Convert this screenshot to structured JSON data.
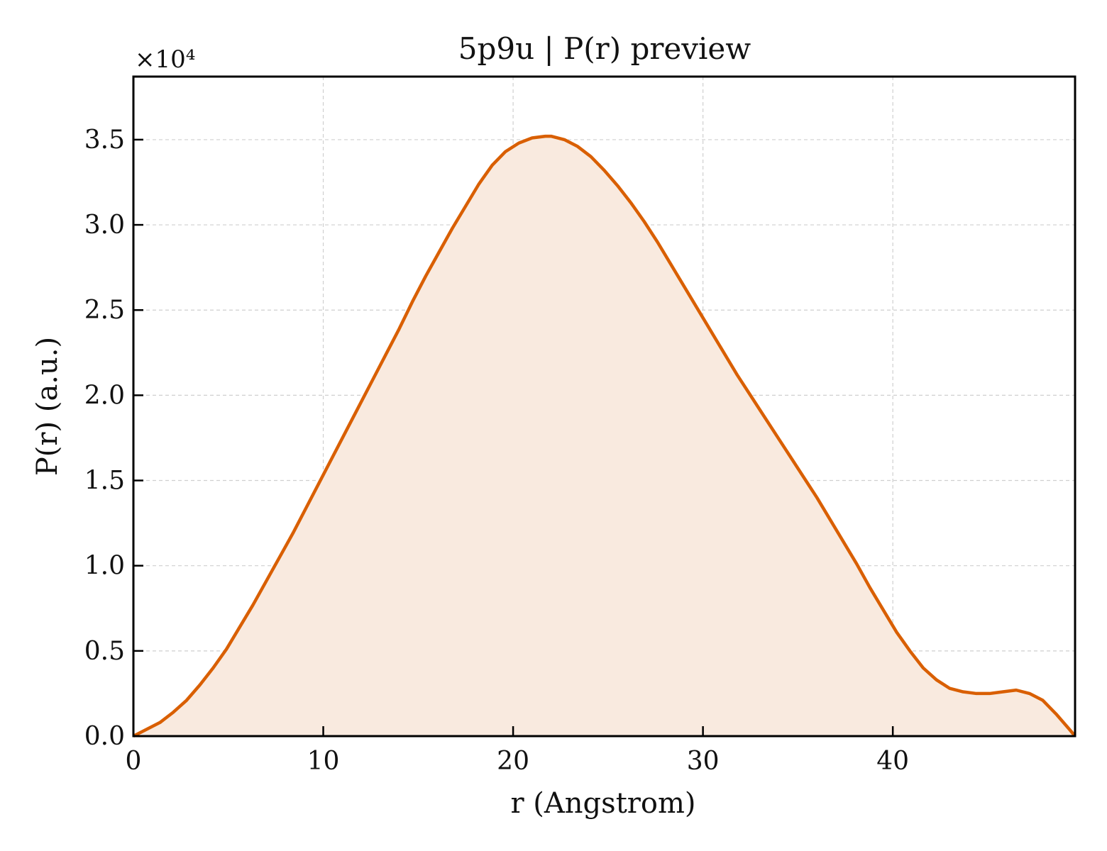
{
  "chart_data": {
    "type": "area",
    "title": "5p9u | P(r) preview",
    "xlabel": "r (Angstrom)",
    "ylabel": "P(r) (a.u.)",
    "y_multiplier_label": "×10⁴",
    "xlim": [
      0,
      49.6
    ],
    "ylim": [
      0,
      3.87
    ],
    "y_units": "×10⁴",
    "x_ticks": [
      0,
      10,
      20,
      30,
      40
    ],
    "x_tick_labels": [
      "0",
      "10",
      "20",
      "30",
      "40"
    ],
    "y_ticks": [
      0,
      0.5,
      1.0,
      1.5,
      2.0,
      2.5,
      3.0,
      3.5
    ],
    "y_tick_labels": [
      "0.0",
      "0.5",
      "1.0",
      "1.5",
      "2.0",
      "2.5",
      "3.0",
      "3.5"
    ],
    "grid": true,
    "line_color": "#d95f02",
    "fill_color": "#f9eadf",
    "series": [
      {
        "x": [
          0,
          0.7,
          1.4,
          2.1,
          2.8,
          3.5,
          4.2,
          4.9,
          5.6,
          6.3,
          7.0,
          7.7,
          8.4,
          9.1,
          9.8,
          10.5,
          11.2,
          11.9,
          12.6,
          13.3,
          14.0,
          14.7,
          15.4,
          16.1,
          16.8,
          17.5,
          18.2,
          18.9,
          19.6,
          20.3,
          21.0,
          21.7,
          22.0,
          22.7,
          23.4,
          24.1,
          24.8,
          25.5,
          26.2,
          26.9,
          27.6,
          28.3,
          29.0,
          29.7,
          30.4,
          31.1,
          31.8,
          32.5,
          33.2,
          33.9,
          34.6,
          35.3,
          36.0,
          36.7,
          37.4,
          38.1,
          38.8,
          39.5,
          40.2,
          40.9,
          41.6,
          42.3,
          43.0,
          43.7,
          44.4,
          45.1,
          45.8,
          46.5,
          47.2,
          47.9,
          48.6,
          49.3,
          49.6
        ],
        "values": [
          0.0,
          0.04,
          0.08,
          0.14,
          0.21,
          0.3,
          0.4,
          0.51,
          0.64,
          0.77,
          0.91,
          1.05,
          1.19,
          1.34,
          1.49,
          1.64,
          1.79,
          1.94,
          2.09,
          2.24,
          2.39,
          2.55,
          2.7,
          2.84,
          2.98,
          3.11,
          3.24,
          3.35,
          3.43,
          3.48,
          3.51,
          3.52,
          3.52,
          3.5,
          3.46,
          3.4,
          3.32,
          3.23,
          3.13,
          3.02,
          2.9,
          2.77,
          2.64,
          2.51,
          2.38,
          2.25,
          2.12,
          2.0,
          1.88,
          1.76,
          1.64,
          1.52,
          1.4,
          1.27,
          1.14,
          1.01,
          0.87,
          0.74,
          0.61,
          0.5,
          0.4,
          0.33,
          0.28,
          0.26,
          0.25,
          0.25,
          0.26,
          0.27,
          0.25,
          0.21,
          0.13,
          0.04,
          0.0
        ]
      }
    ]
  }
}
